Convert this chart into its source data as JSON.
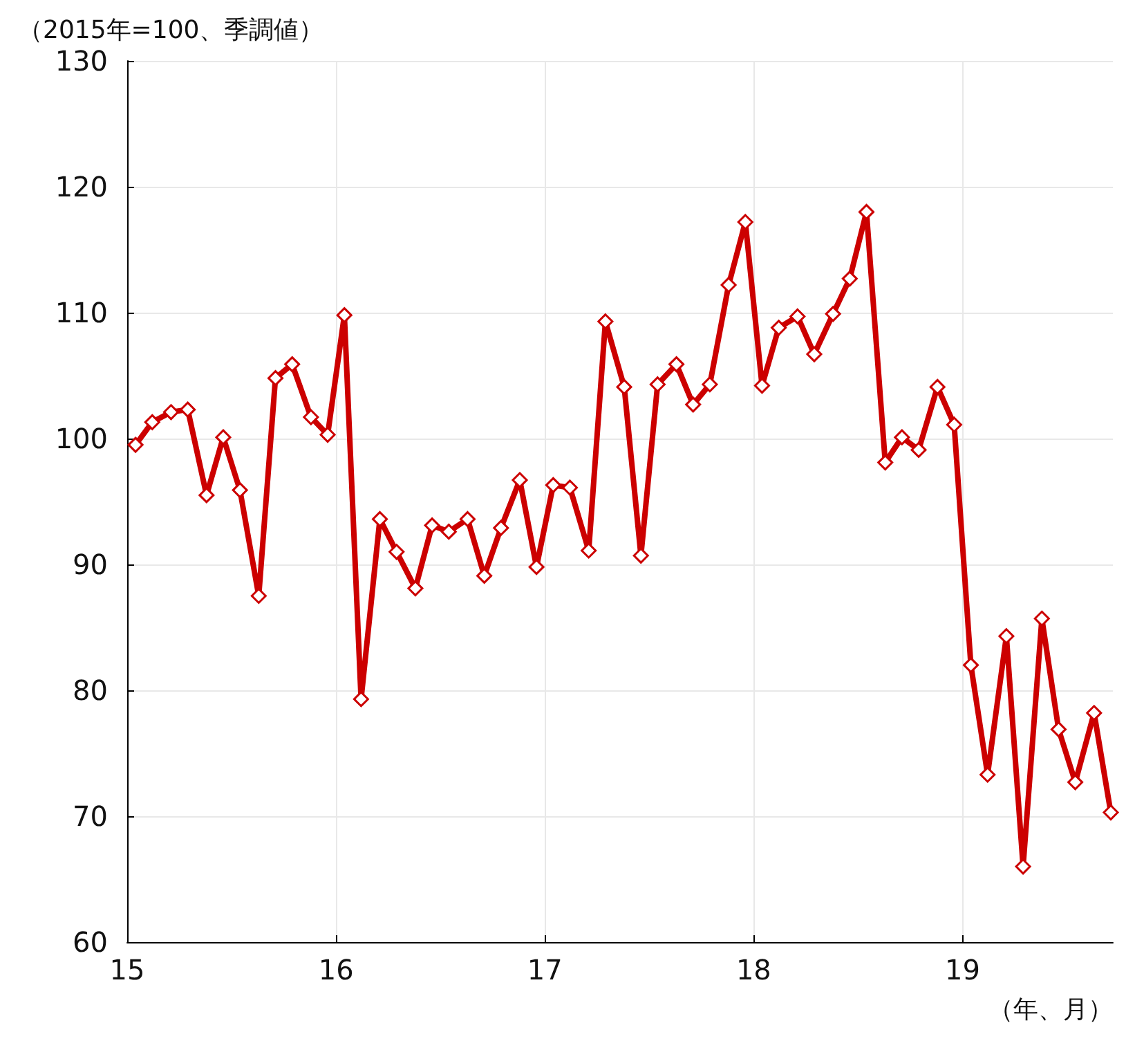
{
  "chart_data": {
    "type": "line",
    "ylabel": "（2015年=100、季調値）",
    "xlabel": "（年、月）",
    "x": [
      15.04,
      15.12,
      15.21,
      15.29,
      15.38,
      15.46,
      15.54,
      15.63,
      15.71,
      15.79,
      15.88,
      15.96,
      16.04,
      16.12,
      16.21,
      16.29,
      16.38,
      16.46,
      16.54,
      16.63,
      16.71,
      16.79,
      16.88,
      16.96,
      17.04,
      17.12,
      17.21,
      17.29,
      17.38,
      17.46,
      17.54,
      17.63,
      17.71,
      17.79,
      17.88,
      17.96,
      18.04,
      18.12,
      18.21,
      18.29,
      18.38,
      18.46,
      18.54,
      18.63,
      18.71,
      18.79,
      18.88,
      18.96,
      19.04,
      19.12,
      19.21,
      19.29,
      19.38,
      19.46,
      19.54,
      19.63,
      19.71
    ],
    "series": [
      {
        "color": "#cc0000",
        "values": [
          99.5,
          101.3,
          102.1,
          102.3,
          95.5,
          100.1,
          95.9,
          87.5,
          104.8,
          105.9,
          101.7,
          100.3,
          109.8,
          79.3,
          93.6,
          91.0,
          88.1,
          93.1,
          92.6,
          93.6,
          89.1,
          92.9,
          96.7,
          89.8,
          96.3,
          96.1,
          91.1,
          109.3,
          104.1,
          90.7,
          104.3,
          105.9,
          102.7,
          104.3,
          112.2,
          117.2,
          104.2,
          108.8,
          109.7,
          106.7,
          109.9,
          112.7,
          118.0,
          98.1,
          100.1,
          99.1,
          104.1,
          101.1,
          82.0,
          73.3,
          84.3,
          66.0,
          85.7,
          76.9,
          72.7,
          78.2,
          70.3
        ]
      }
    ],
    "xlim": [
      15,
      19.72
    ],
    "xticks": [
      15,
      16,
      17,
      18,
      19
    ],
    "ylim": [
      60,
      130
    ],
    "yticks": [
      60,
      70,
      80,
      90,
      100,
      110,
      120,
      130
    ],
    "grid": true,
    "marker": "diamond",
    "line_style": "solid"
  }
}
